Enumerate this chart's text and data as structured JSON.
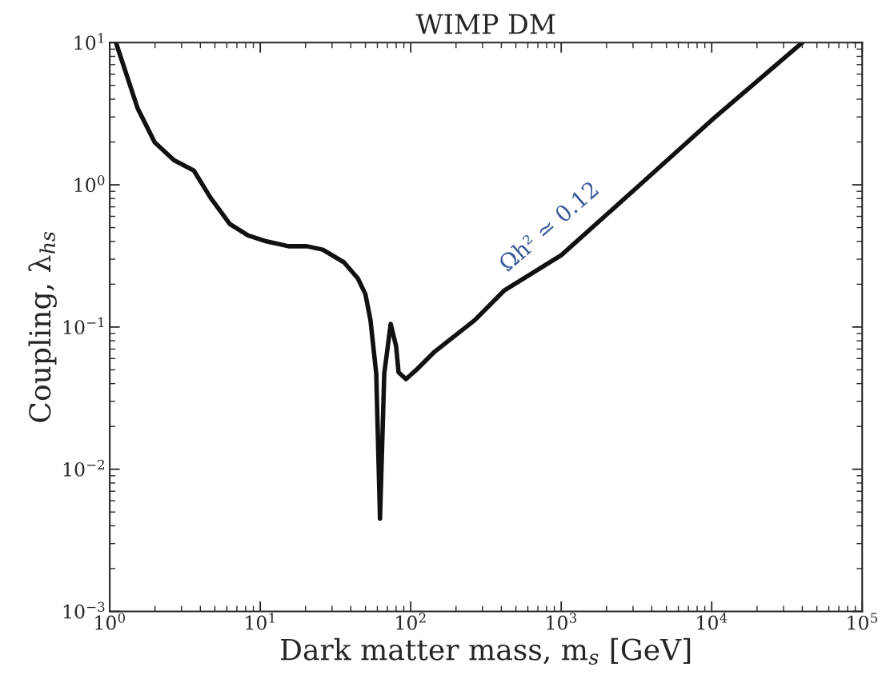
{
  "chart_data": {
    "type": "line",
    "title": "WIMP DM",
    "xlabel": "Dark matter mass, m$_{s}$ [GeV]",
    "ylabel": "Coupling, λ$_{hs}$",
    "log": "xy",
    "grid": false,
    "legend": false,
    "marker": "none",
    "line_style": "solid",
    "xlim": [
      1,
      100000
    ],
    "ylim": [
      0.001,
      10
    ],
    "xticks": [
      {
        "value": 1,
        "label": "10$^{0}$"
      },
      {
        "value": 10,
        "label": "10$^{1}$"
      },
      {
        "value": 100,
        "label": "10$^{2}$"
      },
      {
        "value": 1000,
        "label": "10$^{3}$"
      },
      {
        "value": 10000,
        "label": "10$^{4}$"
      },
      {
        "value": 100000,
        "label": "10$^{5}$"
      }
    ],
    "yticks": [
      {
        "value": 0.001,
        "label": "10$^{−3}$"
      },
      {
        "value": 0.01,
        "label": "10$^{−2}$"
      },
      {
        "value": 0.1,
        "label": "10$^{−1}$"
      },
      {
        "value": 1,
        "label": "10$^{0}$"
      },
      {
        "value": 10,
        "label": "10$^{1}$"
      }
    ],
    "series": [
      {
        "color": "#111111",
        "x": [
          1.1,
          1.53,
          1.99,
          2.67,
          3.62,
          4.68,
          6.28,
          8.3,
          11,
          15.4,
          20.4,
          26,
          36,
          44.5,
          50,
          54,
          59,
          62.5,
          66.7,
          73.6,
          80,
          83,
          93,
          109,
          144,
          267,
          419,
          1000,
          3160,
          10000,
          40000
        ],
        "values": [
          10,
          3.46,
          1.99,
          1.49,
          1.26,
          0.81,
          0.53,
          0.44,
          0.4,
          0.37,
          0.37,
          0.35,
          0.285,
          0.22,
          0.17,
          0.112,
          0.047,
          0.0045,
          0.047,
          0.105,
          0.073,
          0.048,
          0.043,
          0.05,
          0.067,
          0.112,
          0.181,
          0.32,
          0.95,
          2.85,
          10
        ]
      }
    ],
    "annotations": [
      "Ωh² ≃ 0.12"
    ]
  }
}
